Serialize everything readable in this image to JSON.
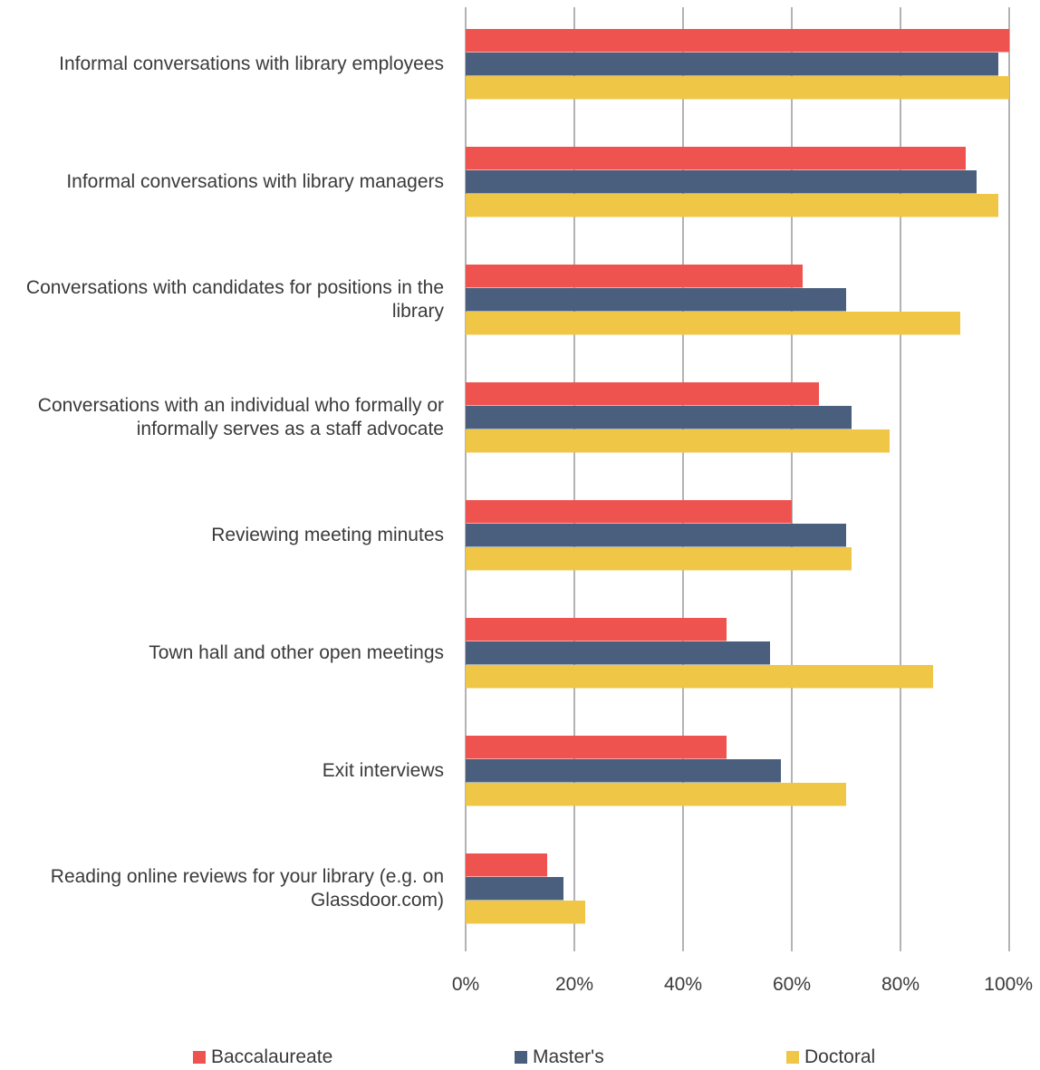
{
  "chart_data": {
    "type": "bar",
    "orientation": "horizontal",
    "categories": [
      "Informal conversations with library employees",
      "Informal conversations with library managers",
      "Conversations with candidates for positions in the library",
      "Conversations with an individual who formally or informally serves as a staff advocate",
      "Reviewing meeting minutes",
      "Town hall and other open meetings",
      "Exit interviews",
      "Reading online reviews for your library (e.g. on Glassdoor.com)"
    ],
    "category_label_lines": [
      [
        "Informal conversations with library employees"
      ],
      [
        "Informal conversations with library managers"
      ],
      [
        "Conversations with candidates for positions in the",
        "library"
      ],
      [
        "Conversations with an individual who formally or",
        "informally serves as a staff advocate"
      ],
      [
        "Reviewing meeting minutes"
      ],
      [
        "Town hall and other open meetings"
      ],
      [
        "Exit interviews"
      ],
      [
        "Reading online reviews for your library (e.g. on",
        "Glassdoor.com)"
      ]
    ],
    "series": [
      {
        "name": "Baccalaureate",
        "color": "#ef5350",
        "values": [
          100,
          92,
          62,
          65,
          60,
          48,
          48,
          15
        ]
      },
      {
        "name": "Master's",
        "color": "#4a5f7e",
        "values": [
          98,
          94,
          70,
          71,
          70,
          56,
          58,
          18
        ]
      },
      {
        "name": "Doctoral",
        "color": "#f0c646",
        "values": [
          100,
          98,
          91,
          78,
          71,
          86,
          70,
          22
        ]
      }
    ],
    "xlim": [
      0,
      100
    ],
    "xticks": [
      "0%",
      "20%",
      "40%",
      "60%",
      "80%",
      "100%"
    ],
    "grid": true,
    "legend_position": "bottom"
  }
}
